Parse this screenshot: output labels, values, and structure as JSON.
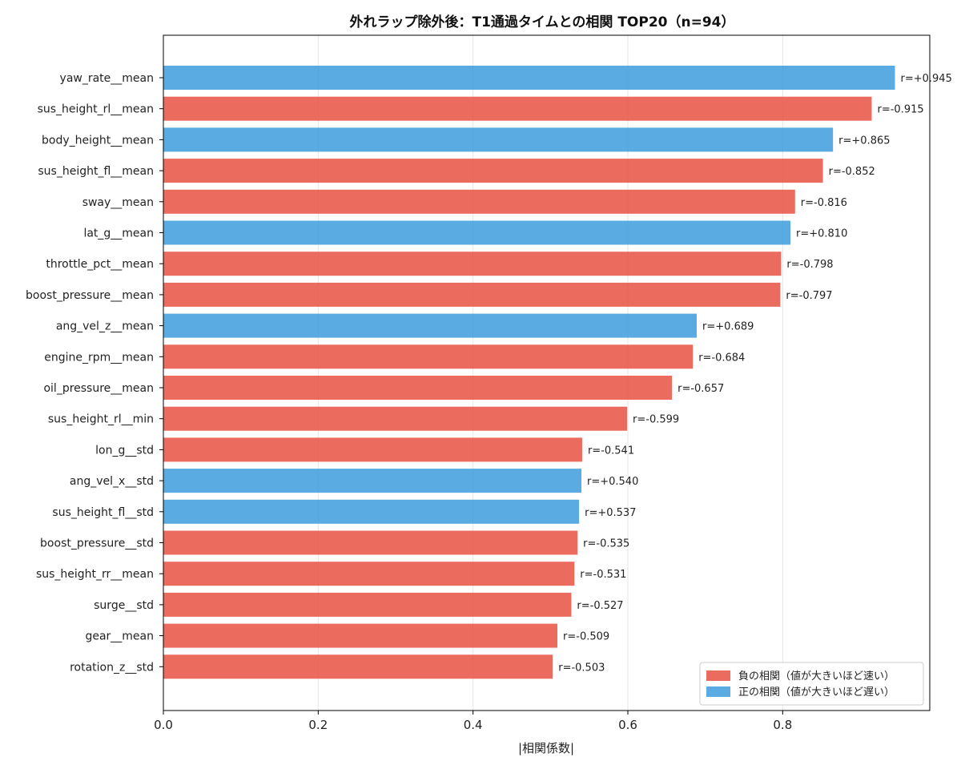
{
  "colors": {
    "negative": "#e74c3c",
    "positive": "#3498db"
  },
  "chart_data": {
    "type": "bar",
    "orientation": "horizontal",
    "title": "外れラップ除外後：T1通過タイムとの相関 TOP20（n=94）",
    "xlabel": "|相関係数|",
    "ylabel": "",
    "xlim": [
      0,
      0.99
    ],
    "xticks": [
      0.0,
      0.2,
      0.4,
      0.6,
      0.8
    ],
    "xtick_labels": [
      "0.0",
      "0.2",
      "0.4",
      "0.6",
      "0.8"
    ],
    "grid": "vertical",
    "legend": {
      "placement": "bottom-right",
      "entries": [
        {
          "key": "negative",
          "label": "負の相関（値が大きいほど速い）"
        },
        {
          "key": "positive",
          "label": "正の相関（値が大きいほど遅い）"
        }
      ]
    },
    "bars": [
      {
        "category": "yaw_rate__mean",
        "value": 0.945,
        "sign": "positive",
        "label": "r=+0.945"
      },
      {
        "category": "sus_height_rl__mean",
        "value": 0.915,
        "sign": "negative",
        "label": "r=-0.915"
      },
      {
        "category": "body_height__mean",
        "value": 0.865,
        "sign": "positive",
        "label": "r=+0.865"
      },
      {
        "category": "sus_height_fl__mean",
        "value": 0.852,
        "sign": "negative",
        "label": "r=-0.852"
      },
      {
        "category": "sway__mean",
        "value": 0.816,
        "sign": "negative",
        "label": "r=-0.816"
      },
      {
        "category": "lat_g__mean",
        "value": 0.81,
        "sign": "positive",
        "label": "r=+0.810"
      },
      {
        "category": "throttle_pct__mean",
        "value": 0.798,
        "sign": "negative",
        "label": "r=-0.798"
      },
      {
        "category": "boost_pressure__mean",
        "value": 0.797,
        "sign": "negative",
        "label": "r=-0.797"
      },
      {
        "category": "ang_vel_z__mean",
        "value": 0.689,
        "sign": "positive",
        "label": "r=+0.689"
      },
      {
        "category": "engine_rpm__mean",
        "value": 0.684,
        "sign": "negative",
        "label": "r=-0.684"
      },
      {
        "category": "oil_pressure__mean",
        "value": 0.657,
        "sign": "negative",
        "label": "r=-0.657"
      },
      {
        "category": "sus_height_rl__min",
        "value": 0.599,
        "sign": "negative",
        "label": "r=-0.599"
      },
      {
        "category": "lon_g__std",
        "value": 0.541,
        "sign": "negative",
        "label": "r=-0.541"
      },
      {
        "category": "ang_vel_x__std",
        "value": 0.54,
        "sign": "positive",
        "label": "r=+0.540"
      },
      {
        "category": "sus_height_fl__std",
        "value": 0.537,
        "sign": "positive",
        "label": "r=+0.537"
      },
      {
        "category": "boost_pressure__std",
        "value": 0.535,
        "sign": "negative",
        "label": "r=-0.535"
      },
      {
        "category": "sus_height_rr__mean",
        "value": 0.531,
        "sign": "negative",
        "label": "r=-0.531"
      },
      {
        "category": "surge__std",
        "value": 0.527,
        "sign": "negative",
        "label": "r=-0.527"
      },
      {
        "category": "gear__mean",
        "value": 0.509,
        "sign": "negative",
        "label": "r=-0.509"
      },
      {
        "category": "rotation_z__std",
        "value": 0.503,
        "sign": "negative",
        "label": "r=-0.503"
      }
    ]
  }
}
